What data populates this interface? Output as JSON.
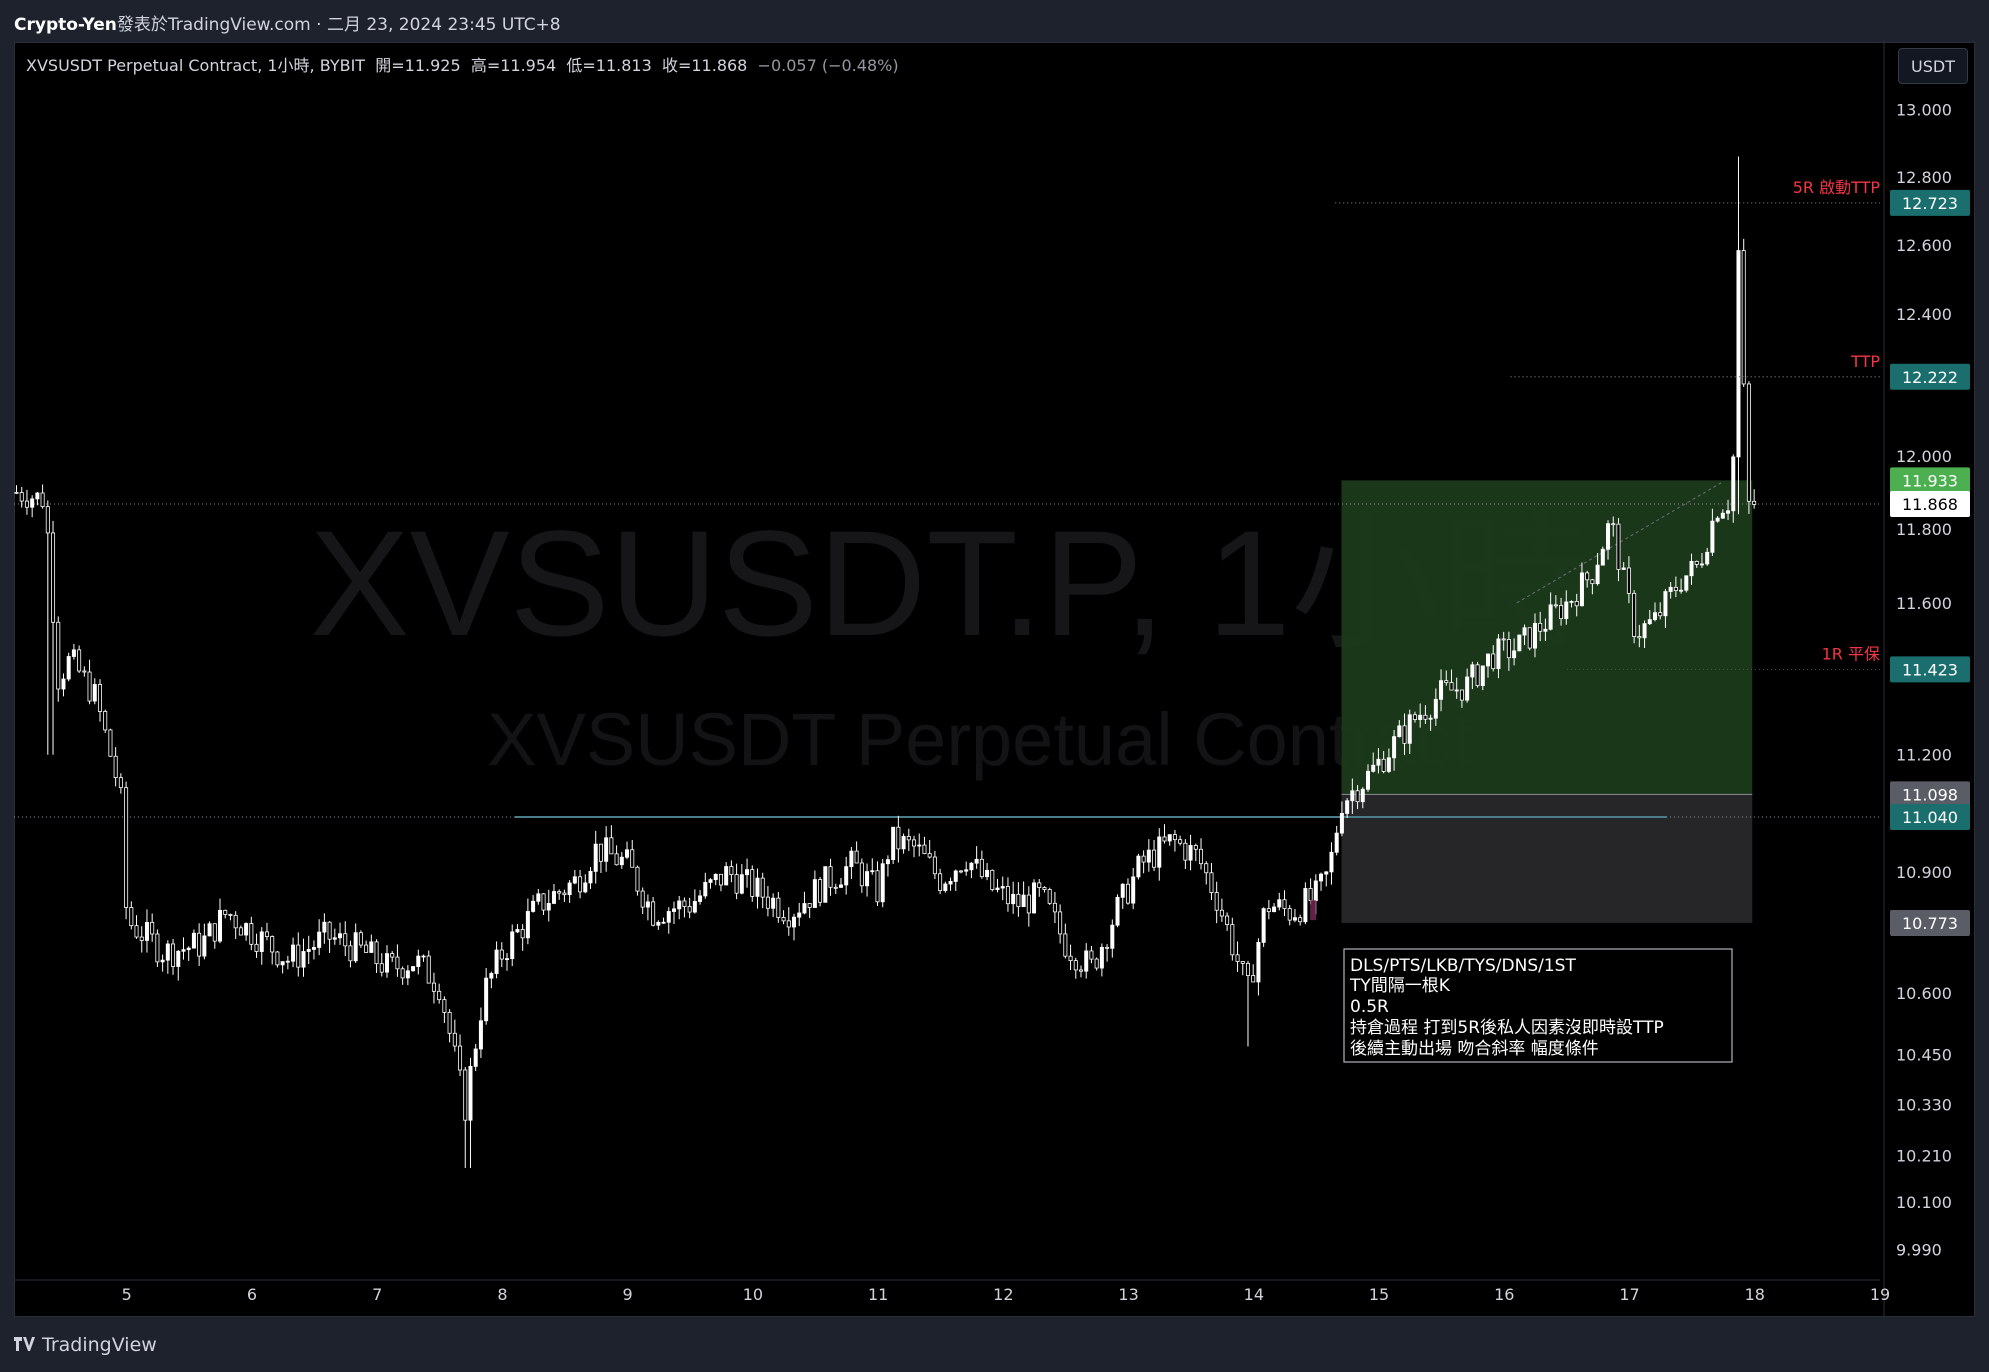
{
  "header": {
    "author": "Crypto-Yen",
    "published_text": "發表於TradingView.com",
    "date": "二月 23, 2024 23:45 UTC+8"
  },
  "legend": {
    "symbol": "XVSUSDT Perpetual Contract, 1小時, BYBIT",
    "open": "開=11.925",
    "high": "高=11.954",
    "low": "低=11.813",
    "close": "收=11.868",
    "change": "−0.057 (−0.48%)"
  },
  "currency_button": "USDT",
  "watermark": {
    "line1": "XVSUSDT.P, 1小時",
    "line2": "XVSUSDT Perpetual Contract"
  },
  "footer": {
    "brand": "TradingView"
  },
  "colors": {
    "background": "#000000",
    "candle": "#ffffff",
    "profit_zone": "#1b3a1b",
    "stop_zone": "#262629",
    "level_label": "#f23645",
    "price_teal": "#1a6e6e",
    "price_green": "#4caf50"
  },
  "annotation": {
    "lines": [
      "DLS/PTS/LKB/TYS/DNS/1ST",
      "TY間隔一根K",
      "0.5R",
      "持倉過程 打到5R後私人因素沒即時設TTP",
      "後續主動出場 吻合斜率 幅度條件"
    ]
  },
  "chart_data": {
    "type": "candlestick",
    "timeframe": "1小時",
    "exchange": "BYBIT",
    "scale": "log",
    "ylim": [
      9.92,
      13.15
    ],
    "y_ticks": [
      "13.000",
      "12.800",
      "12.600",
      "12.400",
      "12.000",
      "11.800",
      "11.600",
      "11.200",
      "10.900",
      "10.600",
      "10.450",
      "10.330",
      "10.210",
      "10.100",
      "9.990"
    ],
    "x_ticks": [
      "5",
      "6",
      "7",
      "8",
      "9",
      "10",
      "11",
      "12",
      "13",
      "14",
      "15",
      "16",
      "17",
      "18",
      "19"
    ],
    "x_tick_days": [
      5,
      6,
      7,
      8,
      9,
      10,
      11,
      12,
      13,
      14,
      15,
      16,
      17,
      18,
      19
    ],
    "x_range_days": [
      4.1,
      19.0
    ],
    "price_close_path": [
      [
        4.12,
        11.9
      ],
      [
        4.35,
        11.88
      ],
      [
        4.45,
        11.4
      ],
      [
        4.55,
        11.45
      ],
      [
        4.75,
        11.35
      ],
      [
        4.95,
        11.1
      ],
      [
        5.0,
        10.78
      ],
      [
        5.3,
        10.7
      ],
      [
        5.6,
        10.72
      ],
      [
        5.8,
        10.8
      ],
      [
        6.0,
        10.75
      ],
      [
        6.3,
        10.68
      ],
      [
        6.6,
        10.74
      ],
      [
        6.9,
        10.7
      ],
      [
        7.1,
        10.66
      ],
      [
        7.3,
        10.68
      ],
      [
        7.5,
        10.62
      ],
      [
        7.7,
        10.32
      ],
      [
        7.85,
        10.6
      ],
      [
        8.0,
        10.7
      ],
      [
        8.3,
        10.82
      ],
      [
        8.6,
        10.88
      ],
      [
        8.75,
        10.96
      ],
      [
        9.0,
        10.92
      ],
      [
        9.2,
        10.8
      ],
      [
        9.5,
        10.82
      ],
      [
        9.8,
        10.9
      ],
      [
        10.0,
        10.86
      ],
      [
        10.3,
        10.8
      ],
      [
        10.6,
        10.88
      ],
      [
        10.8,
        10.92
      ],
      [
        11.0,
        10.85
      ],
      [
        11.1,
        10.98
      ],
      [
        11.3,
        10.96
      ],
      [
        11.5,
        10.88
      ],
      [
        11.7,
        10.94
      ],
      [
        11.9,
        10.86
      ],
      [
        12.1,
        10.82
      ],
      [
        12.3,
        10.84
      ],
      [
        12.5,
        10.72
      ],
      [
        12.7,
        10.66
      ],
      [
        12.9,
        10.8
      ],
      [
        13.1,
        10.92
      ],
      [
        13.35,
        10.98
      ],
      [
        13.55,
        10.94
      ],
      [
        13.7,
        10.84
      ],
      [
        13.85,
        10.7
      ],
      [
        13.95,
        10.6
      ],
      [
        14.1,
        10.82
      ],
      [
        14.3,
        10.8
      ],
      [
        14.5,
        10.84
      ],
      [
        14.6,
        10.9
      ],
      [
        14.7,
        11.08
      ],
      [
        14.9,
        11.14
      ],
      [
        15.1,
        11.22
      ],
      [
        15.3,
        11.3
      ],
      [
        15.5,
        11.36
      ],
      [
        15.7,
        11.38
      ],
      [
        15.9,
        11.46
      ],
      [
        16.1,
        11.48
      ],
      [
        16.3,
        11.54
      ],
      [
        16.5,
        11.6
      ],
      [
        16.7,
        11.68
      ],
      [
        16.85,
        11.82
      ],
      [
        16.95,
        11.66
      ],
      [
        17.05,
        11.52
      ],
      [
        17.2,
        11.55
      ],
      [
        17.4,
        11.66
      ],
      [
        17.55,
        11.7
      ],
      [
        17.7,
        11.86
      ],
      [
        17.82,
        11.88
      ],
      [
        17.88,
        12.72
      ],
      [
        17.93,
        11.86
      ],
      [
        18.0,
        11.87
      ]
    ],
    "levels": [
      {
        "label": "5R 啟動TTP",
        "price": 12.723
      },
      {
        "label": "TTP",
        "price": 12.222
      },
      {
        "label": "1R 平保",
        "price": 11.423
      }
    ],
    "price_labels": [
      {
        "value": "12.723",
        "kind": "teal"
      },
      {
        "value": "12.222",
        "kind": "teal"
      },
      {
        "value": "11.933",
        "kind": "green"
      },
      {
        "value": "11.868",
        "kind": "last"
      },
      {
        "value": "11.423",
        "kind": "teal"
      },
      {
        "value": "11.098",
        "kind": "grey"
      },
      {
        "value": "11.040",
        "kind": "teal"
      },
      {
        "value": "10.773",
        "kind": "grey"
      }
    ],
    "position": {
      "type": "long",
      "entry": 11.098,
      "target": 11.933,
      "stop": 10.773,
      "start_day": 14.7,
      "end_day": 17.98
    },
    "horizontal_lines": [
      {
        "price": 11.868,
        "style": "dotted"
      },
      {
        "price": 11.04,
        "style": "dotted"
      },
      {
        "price": 12.723,
        "style": "dotted"
      },
      {
        "price": 12.222,
        "style": "dotted"
      }
    ],
    "resistance_line": {
      "price": 11.04,
      "from_day": 8.1,
      "to_day": 17.3
    }
  }
}
